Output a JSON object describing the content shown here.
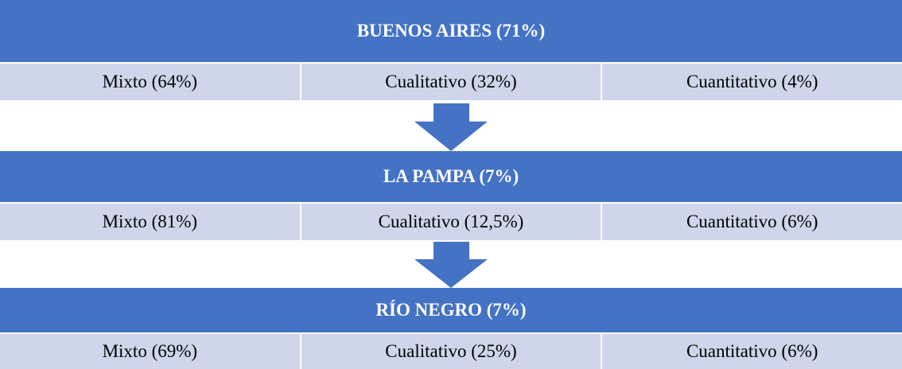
{
  "blocks": [
    {
      "title": "BUENOS AIRES (71%)",
      "items": [
        "Mixto (64%)",
        "Cualitativo (32%)",
        "Cuantitativo (4%)"
      ]
    },
    {
      "title": "LA PAMPA (7%)",
      "items": [
        "Mixto (81%)",
        "Cualitativo (12,5%)",
        "Cuantitativo (6%)"
      ]
    },
    {
      "title": "RÍO NEGRO (7%)",
      "items": [
        "Mixto (69%)",
        "Cualitativo (25%)",
        "Cuantitativo (6%)"
      ]
    }
  ]
}
